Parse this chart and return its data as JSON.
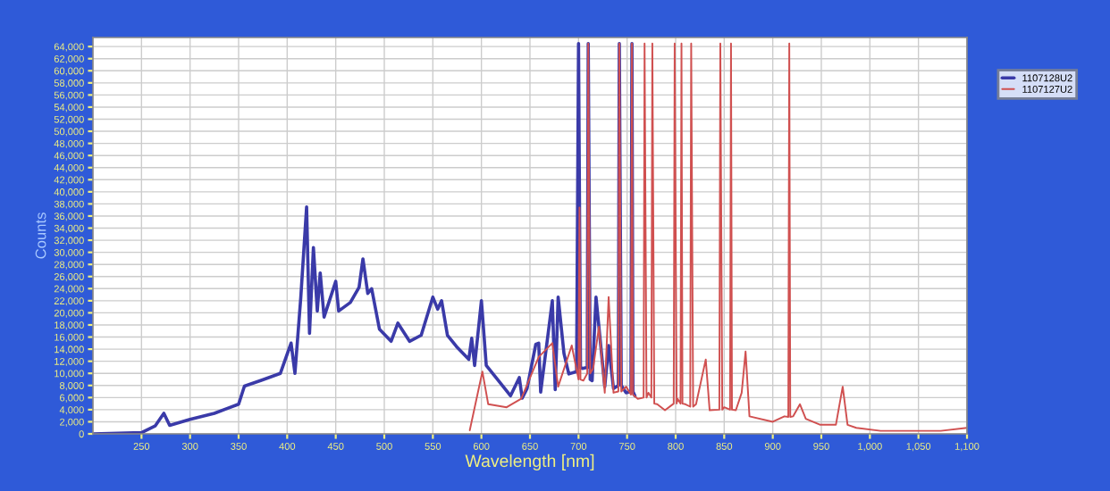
{
  "chart_data": {
    "type": "line",
    "xlabel": "Wavelength [nm]",
    "ylabel": "Counts",
    "xlim": [
      200,
      1100
    ],
    "xticks": [
      250,
      300,
      350,
      400,
      450,
      500,
      550,
      600,
      650,
      700,
      750,
      800,
      850,
      900,
      950,
      {
        "value": 1000,
        "label": "1,000"
      },
      {
        "value": 1050,
        "label": "1,050"
      },
      {
        "value": 1100,
        "label": "1,100"
      }
    ],
    "ylim": [
      0,
      65500
    ],
    "yticks": [
      0,
      {
        "value": 2000,
        "label": "2,000"
      },
      {
        "value": 4000,
        "label": "4,000"
      },
      {
        "value": 6000,
        "label": "6,000"
      },
      {
        "value": 8000,
        "label": "8,000"
      },
      {
        "value": 10000,
        "label": "10,000"
      },
      {
        "value": 12000,
        "label": "12,000"
      },
      {
        "value": 14000,
        "label": "14,000"
      },
      {
        "value": 16000,
        "label": "16,000"
      },
      {
        "value": 18000,
        "label": "18,000"
      },
      {
        "value": 20000,
        "label": "20,000"
      },
      {
        "value": 22000,
        "label": "22,000"
      },
      {
        "value": 24000,
        "label": "24,000"
      },
      {
        "value": 26000,
        "label": "26,000"
      },
      {
        "value": 28000,
        "label": "28,000"
      },
      {
        "value": 30000,
        "label": "30,000"
      },
      {
        "value": 32000,
        "label": "32,000"
      },
      {
        "value": 34000,
        "label": "34,000"
      },
      {
        "value": 36000,
        "label": "36,000"
      },
      {
        "value": 38000,
        "label": "38,000"
      },
      {
        "value": 40000,
        "label": "40,000"
      },
      {
        "value": 42000,
        "label": "42,000"
      },
      {
        "value": 44000,
        "label": "44,000"
      },
      {
        "value": 46000,
        "label": "46,000"
      },
      {
        "value": 48000,
        "label": "48,000"
      },
      {
        "value": 50000,
        "label": "50,000"
      },
      {
        "value": 52000,
        "label": "52,000"
      },
      {
        "value": 54000,
        "label": "54,000"
      },
      {
        "value": 56000,
        "label": "56,000"
      },
      {
        "value": 58000,
        "label": "58,000"
      },
      {
        "value": 60000,
        "label": "60,000"
      },
      {
        "value": 62000,
        "label": "62,000"
      },
      {
        "value": 64000,
        "label": "64,000"
      }
    ],
    "grid": true,
    "legend": "right",
    "series": [
      {
        "name": "1107128U2",
        "color": "#3a3aa8",
        "x": [
          200,
          250,
          264,
          273,
          279,
          300,
          325,
          350,
          356,
          374,
          393,
          404,
          408,
          414,
          420,
          423,
          427,
          431,
          434,
          438,
          450,
          453,
          465,
          474,
          478,
          483,
          487,
          495,
          507,
          514,
          526,
          538,
          550,
          555,
          559,
          565,
          575,
          587,
          590,
          593,
          600,
          605,
          617,
          630,
          639,
          642,
          647,
          656,
          659,
          661,
          673,
          676,
          679,
          685,
          690,
          698,
          700,
          702,
          704,
          709,
          710,
          712,
          714,
          718,
          727,
          731,
          736,
          741,
          742,
          744,
          749,
          754,
          755,
          756,
          758
        ],
        "values": [
          0,
          200,
          1300,
          3400,
          1400,
          2400,
          3400,
          4900,
          7900,
          8900,
          10000,
          15000,
          10000,
          22500,
          37500,
          16600,
          30800,
          20300,
          26600,
          19300,
          25200,
          20300,
          21700,
          24200,
          28900,
          23200,
          24000,
          17300,
          15300,
          18300,
          15300,
          16300,
          22600,
          20600,
          22000,
          16300,
          14300,
          12300,
          15800,
          11300,
          22000,
          11300,
          8900,
          6300,
          9300,
          5900,
          7500,
          14800,
          15000,
          6900,
          22000,
          7300,
          22600,
          13300,
          9900,
          10300,
          64500,
          11000,
          10800,
          11000,
          64500,
          9000,
          8800,
          22600,
          7800,
          14600,
          7500,
          8000,
          64500,
          8000,
          6800,
          7000,
          64500,
          7000,
          6300
        ]
      },
      {
        "name": "1107127U2",
        "color": "#d05050",
        "x": [
          588,
          601,
          607,
          626,
          641,
          659,
          673,
          679,
          693,
          700,
          701,
          702,
          705,
          709,
          710,
          712,
          715,
          721,
          727,
          731,
          736,
          741,
          742,
          744,
          749,
          754,
          755,
          756,
          761,
          767,
          768,
          770,
          772,
          775,
          776,
          778,
          781,
          789,
          798,
          799,
          801,
          802,
          805,
          806,
          807,
          810,
          815,
          816,
          818,
          821,
          831,
          835,
          845,
          846,
          848,
          850,
          856,
          857,
          858,
          862,
          868,
          872,
          876,
          900,
          912,
          916,
          917,
          918,
          921,
          928,
          934,
          949,
          965,
          972,
          977,
          986,
          1011,
          1073,
          1100
        ],
        "values": [
          600,
          10300,
          4900,
          4400,
          5800,
          12700,
          15000,
          7800,
          14600,
          9000,
          37400,
          9000,
          8800,
          10000,
          64500,
          10000,
          10800,
          17700,
          6800,
          22600,
          6800,
          7000,
          64500,
          7000,
          7800,
          6500,
          64500,
          6500,
          5800,
          6000,
          64500,
          6000,
          6800,
          6000,
          64500,
          5000,
          4900,
          3900,
          5000,
          64500,
          5000,
          5800,
          5000,
          64500,
          5000,
          4900,
          4500,
          64500,
          4500,
          4900,
          12300,
          3900,
          4000,
          64500,
          4000,
          4400,
          4000,
          64500,
          4000,
          3900,
          6800,
          13600,
          2900,
          2000,
          2900,
          2800,
          64500,
          2800,
          2900,
          4900,
          2500,
          1500,
          1500,
          7800,
          1500,
          1000,
          500,
          500,
          1000
        ]
      }
    ]
  }
}
